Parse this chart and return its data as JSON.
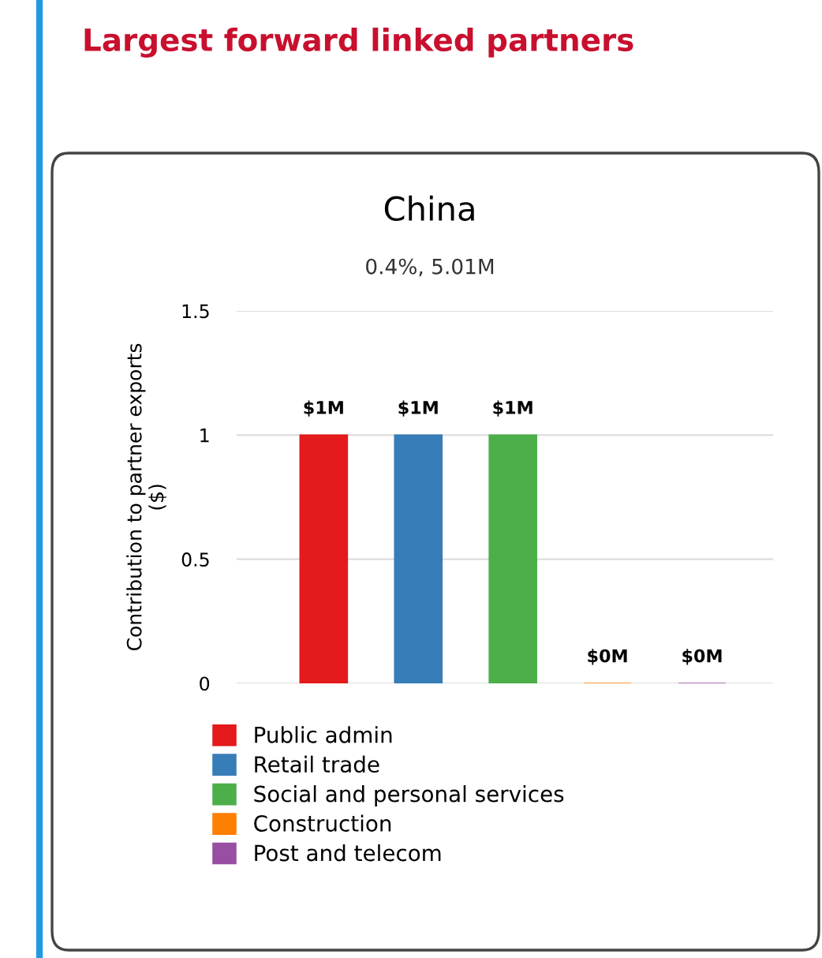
{
  "chart_data": {
    "type": "bar",
    "title": "China",
    "subtitle": "0.4%, 5.01M",
    "annotations": [
      "Largest forward linked partners"
    ],
    "ylabel": "Contribution to partner exports\n($)",
    "categories": [
      null,
      null,
      null,
      null,
      null
    ],
    "series": [
      {
        "name": "Public admin",
        "color": "#e41a1c",
        "values": [
          1,
          null,
          null,
          null,
          null
        ],
        "value_labels": [
          "$1M",
          null,
          null,
          null,
          null
        ]
      },
      {
        "name": "Retail trade",
        "color": "#377eb8",
        "values": [
          null,
          1,
          null,
          null,
          null
        ],
        "value_labels": [
          null,
          "$1M",
          null,
          null,
          null
        ]
      },
      {
        "name": "Social and personal services",
        "color": "#4daf4a",
        "values": [
          null,
          null,
          1,
          null,
          null
        ],
        "value_labels": [
          null,
          null,
          "$1M",
          null,
          null
        ]
      },
      {
        "name": "Construction",
        "color": "#ff7f00",
        "values": [
          null,
          null,
          null,
          0,
          null
        ],
        "value_labels": [
          null,
          null,
          null,
          "$0M",
          null
        ]
      },
      {
        "name": "Post and telecom",
        "color": "#984ea3",
        "values": [
          null,
          null,
          null,
          null,
          0
        ],
        "value_labels": [
          null,
          null,
          null,
          null,
          "$0M"
        ]
      }
    ],
    "ylim": [
      0,
      1.5
    ],
    "yticks": [
      0,
      0.5,
      1,
      1.5
    ],
    "grid": "y",
    "legend": "bottom",
    "tick_labels": "y"
  }
}
